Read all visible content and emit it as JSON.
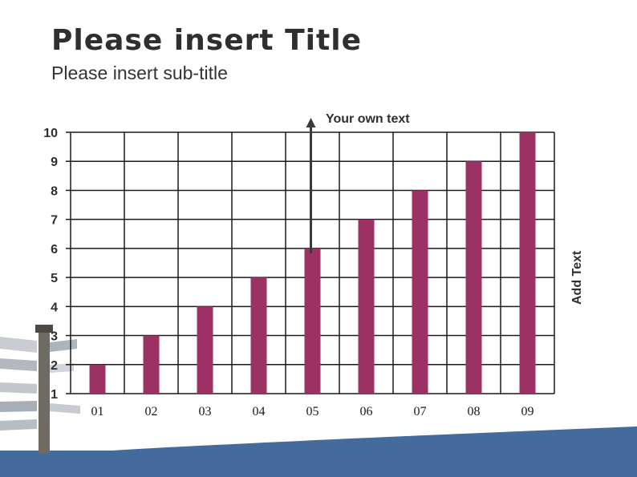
{
  "slide": {
    "title": "Please insert Title",
    "subtitle": "Please insert sub-title"
  },
  "annotations": {
    "arrow_label": "Your own text",
    "side_label": "Add Text"
  },
  "colors": {
    "bar": "#9c3163",
    "grid": "#1a1a1a",
    "band": "#456a9c",
    "arrow": "#3a3a3a"
  },
  "chart_data": {
    "type": "bar",
    "categories": [
      "01",
      "02",
      "03",
      "04",
      "05",
      "06",
      "07",
      "08",
      "09"
    ],
    "values": [
      2,
      3,
      4,
      5,
      6,
      7,
      8,
      9,
      10
    ],
    "yticks": [
      1,
      2,
      3,
      4,
      5,
      6,
      7,
      8,
      9,
      10
    ],
    "ylim": [
      1,
      10
    ],
    "grid": true,
    "legend": "none",
    "arrow_category": "05"
  }
}
